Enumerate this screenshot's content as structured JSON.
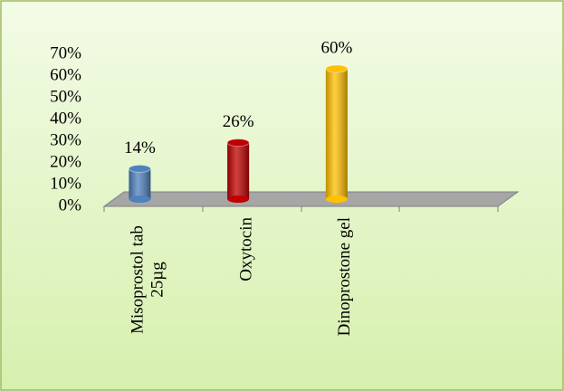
{
  "chart_data": {
    "type": "bar",
    "categories": [
      "Misoprostol tab 25µg",
      "Oxytocin",
      "Dinoprostone gel",
      null
    ],
    "values": [
      14,
      26,
      60,
      null
    ],
    "value_labels": [
      "14%",
      "26%",
      "60%",
      null
    ],
    "colors": [
      "#4f81bd",
      "#c00000",
      "#ffc000",
      null
    ],
    "ylim": [
      0,
      70
    ],
    "yticks": [
      {
        "value": 0,
        "label": "0%"
      },
      {
        "value": 10,
        "label": "10%"
      },
      {
        "value": 20,
        "label": "20%"
      },
      {
        "value": 30,
        "label": "30%"
      },
      {
        "value": 40,
        "label": "40%"
      },
      {
        "value": 50,
        "label": "50%"
      },
      {
        "value": 60,
        "label": "60%"
      },
      {
        "value": 70,
        "label": "70%"
      }
    ]
  }
}
